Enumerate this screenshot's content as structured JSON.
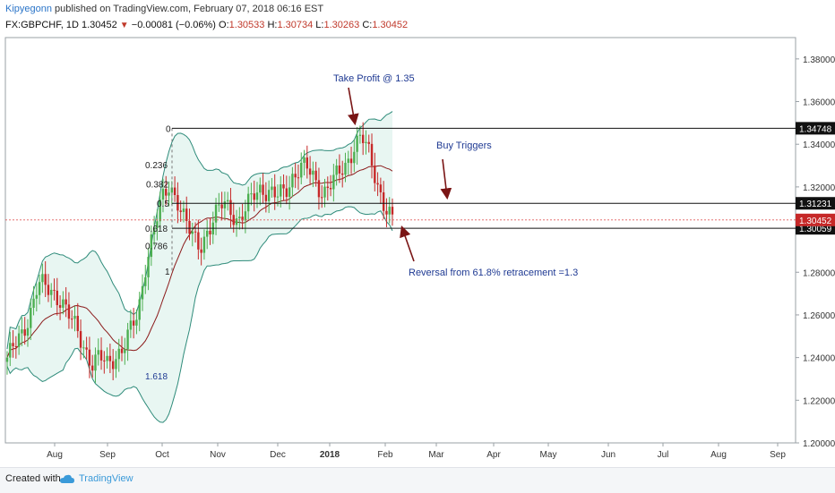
{
  "header": {
    "author": "Kipyegonn",
    "published_text": " published on TradingView.com, February 07, 2018 06:16 EST",
    "symbol": "FX:GBPCHF, 1D",
    "last": "1.30452",
    "change_arrow": "▼",
    "change": "−0.00081 (−0.06%)",
    "o_label": "O:",
    "o_value": "1.30533",
    "h_label": "H:",
    "h_value": "1.30734",
    "l_label": "L:",
    "l_value": "1.30263",
    "c_label": "C:",
    "c_value": "1.30452"
  },
  "footer": {
    "created_with": "Created with",
    "brand": "TradingView"
  },
  "colors": {
    "bull": "#4caf50",
    "bear": "#c62828",
    "band_line": "#2e8b7a",
    "band_fill": "#e8f6f2",
    "basis": "#8b1a1a",
    "annotation": "#1f3a93",
    "arrow": "#7a1515",
    "price_line": "#e05a5a"
  },
  "chart_data": {
    "type": "candlestick",
    "instrument": "GBPCHF",
    "timeframe": "1D",
    "ylim": [
      1.2,
      1.39
    ],
    "y_ticks": [
      "1.20000",
      "1.22000",
      "1.24000",
      "1.26000",
      "1.28000",
      "1.30000",
      "1.32000",
      "1.34000",
      "1.36000",
      "1.38000"
    ],
    "x_ticks": [
      "Aug",
      "Sep",
      "Oct",
      "Nov",
      "Dec",
      "2018",
      "Feb",
      "Mar",
      "Apr",
      "May",
      "Jun",
      "Jul",
      "Aug",
      "Sep"
    ],
    "grid": false,
    "price_close_series": [
      1.24,
      1.245,
      1.251,
      1.262,
      1.275,
      1.272,
      1.27,
      1.268,
      1.26,
      1.252,
      1.245,
      1.238,
      1.24,
      1.236,
      1.241,
      1.245,
      1.252,
      1.26,
      1.285,
      1.3,
      1.312,
      1.32,
      1.316,
      1.305,
      1.296,
      1.292,
      1.3,
      1.306,
      1.312,
      1.31,
      1.304,
      1.309,
      1.316,
      1.32,
      1.318,
      1.315,
      1.317,
      1.325,
      1.33,
      1.328,
      1.322,
      1.318,
      1.322,
      1.325,
      1.33,
      1.34,
      1.344,
      1.334,
      1.322,
      1.312,
      1.304
    ],
    "fibonacci_levels": [
      {
        "label": "0",
        "price": 1.34748
      },
      {
        "label": "0.236",
        "price": 1.3305
      },
      {
        "label": "0.382",
        "price": 1.3215
      },
      {
        "label": "0.5",
        "price": 1.31231
      },
      {
        "label": "0.618",
        "price": 1.30059
      },
      {
        "label": "0.786",
        "price": 1.2925
      },
      {
        "label": "1",
        "price": 1.2805
      },
      {
        "label": "1.618",
        "price": 1.2315
      }
    ],
    "horizontal_levels": [
      {
        "label": "1.34748",
        "price": 1.34748
      },
      {
        "label": "1.31231",
        "price": 1.31231
      },
      {
        "label": "1.30059",
        "price": 1.30059
      }
    ],
    "last_price": {
      "label": "1.30452",
      "price": 1.30452
    },
    "annotations": [
      {
        "text": "Take Profit @ 1.35"
      },
      {
        "text": "Buy Triggers"
      },
      {
        "text": "Reversal from 61.8% retracement =1.3"
      }
    ]
  }
}
